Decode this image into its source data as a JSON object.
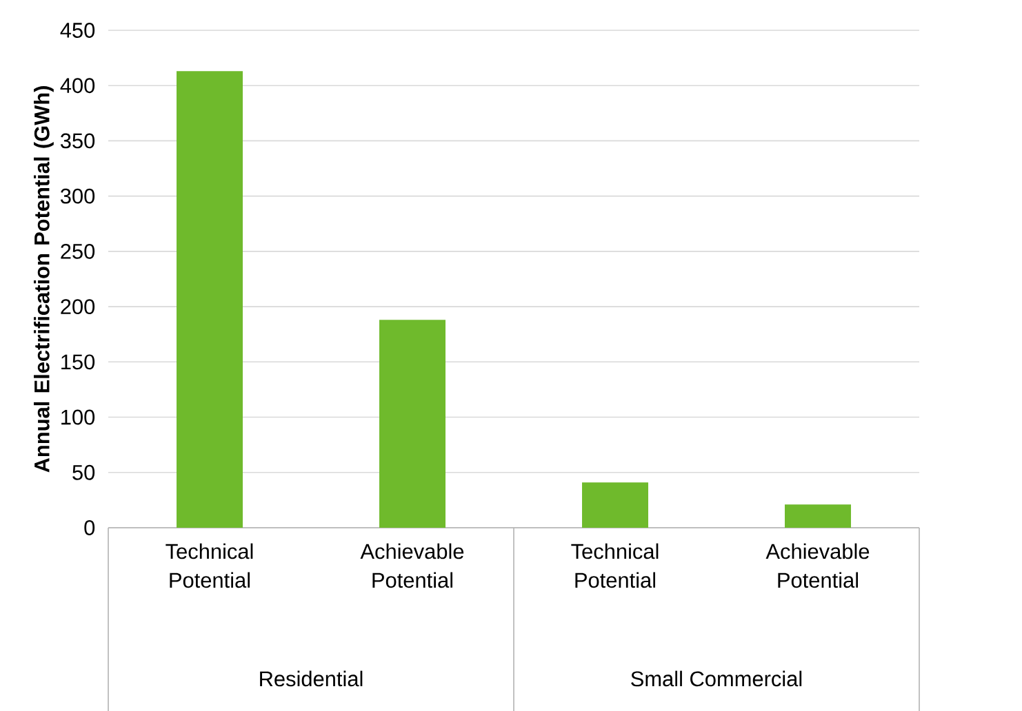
{
  "chart_data": {
    "type": "bar",
    "ylabel": "Annual Electrification Potential (GWh)",
    "categories": [
      "Technical Potential",
      "Achievable Potential",
      "Technical Potential",
      "Achievable Potential"
    ],
    "values": [
      413,
      188,
      41,
      21
    ],
    "color": "#6fba2c",
    "ylim": [
      0,
      450
    ],
    "yticks": [
      0,
      50,
      100,
      150,
      200,
      250,
      300,
      350,
      400,
      450
    ],
    "grid": "y",
    "annotations": [
      "Residential",
      "Small Commercial"
    ]
  }
}
